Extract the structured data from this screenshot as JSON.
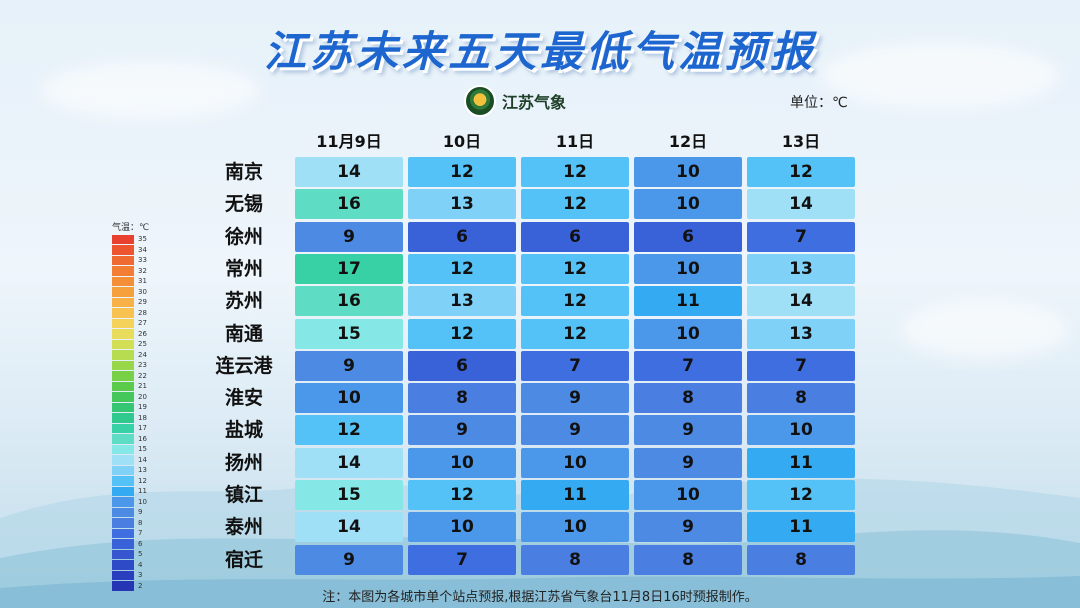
{
  "title": "江苏未来五天最低气温预报",
  "brand": {
    "name": "江苏气象",
    "logo_icon": "jiangsu-meteorology-logo-icon"
  },
  "unit": "单位：℃",
  "columns": [
    "11月9日",
    "10日",
    "11日",
    "12日",
    "13日"
  ],
  "rows": [
    {
      "city": "南京",
      "values": [
        14,
        12,
        12,
        10,
        12
      ]
    },
    {
      "city": "无锡",
      "values": [
        16,
        13,
        12,
        10,
        14
      ]
    },
    {
      "city": "徐州",
      "values": [
        9,
        6,
        6,
        6,
        7
      ]
    },
    {
      "city": "常州",
      "values": [
        17,
        12,
        12,
        10,
        13
      ]
    },
    {
      "city": "苏州",
      "values": [
        16,
        13,
        12,
        11,
        14
      ]
    },
    {
      "city": "南通",
      "values": [
        15,
        12,
        12,
        10,
        13
      ]
    },
    {
      "city": "连云港",
      "values": [
        9,
        6,
        7,
        7,
        7
      ]
    },
    {
      "city": "淮安",
      "values": [
        10,
        8,
        9,
        8,
        8
      ]
    },
    {
      "city": "盐城",
      "values": [
        12,
        9,
        9,
        9,
        10
      ]
    },
    {
      "city": "扬州",
      "values": [
        14,
        10,
        10,
        9,
        11
      ]
    },
    {
      "city": "镇江",
      "values": [
        15,
        12,
        11,
        10,
        12
      ]
    },
    {
      "city": "泰州",
      "values": [
        14,
        10,
        10,
        9,
        11
      ]
    },
    {
      "city": "宿迁",
      "values": [
        9,
        7,
        8,
        8,
        8
      ]
    }
  ],
  "legend": {
    "title": "气温：℃",
    "levels": [
      {
        "label": "35",
        "color": "#e8412f"
      },
      {
        "label": "34",
        "color": "#ec5530"
      },
      {
        "label": "33",
        "color": "#ef6a31"
      },
      {
        "label": "32",
        "color": "#f27d33"
      },
      {
        "label": "31",
        "color": "#f48e37"
      },
      {
        "label": "30",
        "color": "#f6a03d"
      },
      {
        "label": "29",
        "color": "#f7b146"
      },
      {
        "label": "28",
        "color": "#f8c250"
      },
      {
        "label": "27",
        "color": "#f5d25a"
      },
      {
        "label": "26",
        "color": "#e9dc5b"
      },
      {
        "label": "25",
        "color": "#d2df55"
      },
      {
        "label": "24",
        "color": "#b7dc4f"
      },
      {
        "label": "23",
        "color": "#98d64a"
      },
      {
        "label": "22",
        "color": "#78d046"
      },
      {
        "label": "21",
        "color": "#5ccb4c"
      },
      {
        "label": "20",
        "color": "#45c75b"
      },
      {
        "label": "19",
        "color": "#35c673"
      },
      {
        "label": "18",
        "color": "#2fc88d"
      },
      {
        "label": "17",
        "color": "#38d1a6"
      },
      {
        "label": "16",
        "color": "#5fddc4"
      },
      {
        "label": "15",
        "color": "#85e8e6"
      },
      {
        "label": "14",
        "color": "#a0e0f6"
      },
      {
        "label": "13",
        "color": "#7fd1f8"
      },
      {
        "label": "12",
        "color": "#54c2f6"
      },
      {
        "label": "11",
        "color": "#33aaf2"
      },
      {
        "label": "10",
        "color": "#4b98ea"
      },
      {
        "label": "9",
        "color": "#4d8ae4"
      },
      {
        "label": "8",
        "color": "#4a7ee0"
      },
      {
        "label": "7",
        "color": "#3f6ee0"
      },
      {
        "label": "6",
        "color": "#3a62d8"
      },
      {
        "label": "5",
        "color": "#3556cf"
      },
      {
        "label": "4",
        "color": "#2f4ac6"
      },
      {
        "label": "3",
        "color": "#2a3fbd"
      },
      {
        "label": "2",
        "color": "#2535b3"
      }
    ]
  },
  "note": "注：本图为各城市单个站点预报,根据江苏省气象台11月8日16时预报制作。"
}
